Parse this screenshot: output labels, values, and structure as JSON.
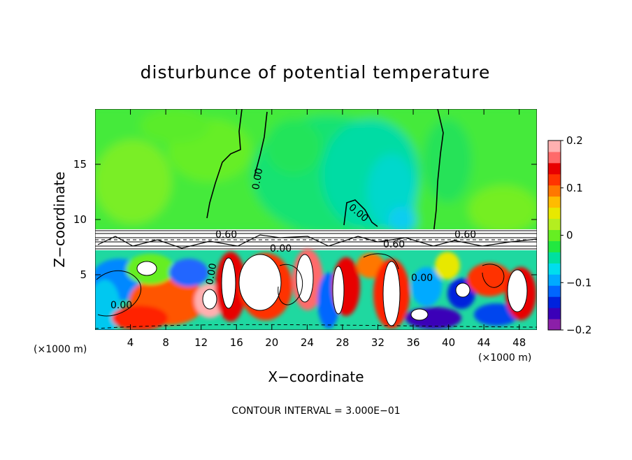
{
  "chart_data": {
    "type": "heatmap",
    "title": "disturbunce of potential temperature",
    "xlabel": "X−coordinate",
    "ylabel": "Z−coordinate",
    "x_unit": "(×1000 m)",
    "xlim": [
      0,
      50
    ],
    "ylim": [
      0,
      20
    ],
    "x_ticks": [
      4,
      8,
      12,
      16,
      20,
      24,
      28,
      32,
      36,
      40,
      44,
      48
    ],
    "y_ticks": [
      5,
      10,
      15
    ],
    "colorbar": {
      "range": [
        -0.2,
        0.2
      ],
      "tick_labels": [
        "0.2",
        "0.1",
        "0",
        "−0.1",
        "−0.2"
      ],
      "colors": [
        "#8B1FA8",
        "#3A00B8",
        "#0022DD",
        "#0066FF",
        "#00AAFF",
        "#00DDEE",
        "#00E0A0",
        "#22E840",
        "#66EE22",
        "#B4EE20",
        "#E8E800",
        "#FFBB00",
        "#FF7700",
        "#FF3300",
        "#E80000",
        "#FF6A6A",
        "#FFB0B0"
      ]
    },
    "contour_labels": [
      "0.60",
      "0.60",
      "0.00",
      "0.00",
      "0.00",
      "0.00",
      "0.60",
      "0.00",
      "0.00"
    ],
    "footer": "CONTOUR INTERVAL = 3.000E−01"
  }
}
